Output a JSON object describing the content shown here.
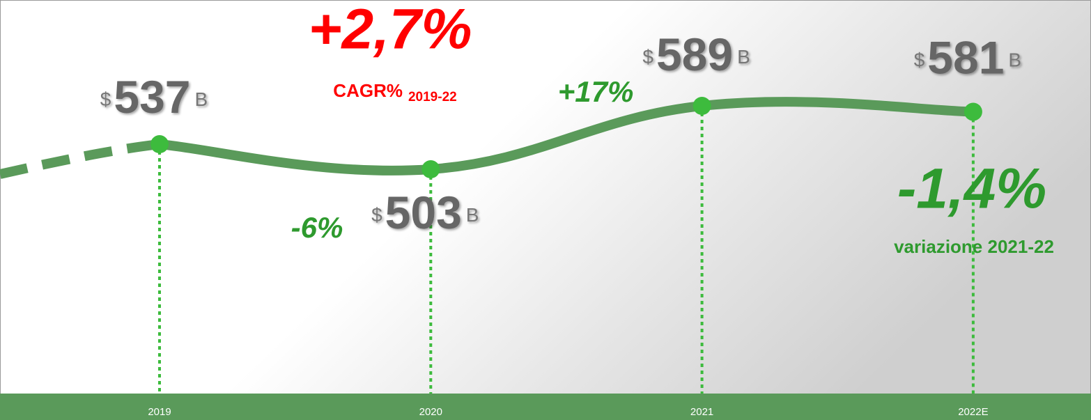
{
  "chart_data": {
    "type": "line",
    "categories": [
      "2019",
      "2020",
      "2021",
      "2022E"
    ],
    "values": [
      537,
      503,
      589,
      581
    ],
    "color": "#5a9a5a",
    "marker_color": "#3dbb3d",
    "value_prefix": "$",
    "value_suffix": "B",
    "change_labels": [
      null,
      "-6%",
      "+17%",
      null
    ],
    "cagr": "+2,7%",
    "cagr_label": "CAGR%",
    "cagr_period": "2019-22",
    "highlight": "-1,4%",
    "highlight_label": "variazione 2021-22"
  }
}
